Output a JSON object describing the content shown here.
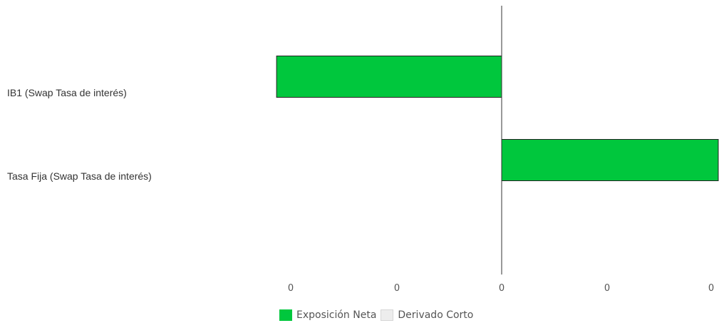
{
  "chart_data": {
    "type": "bar",
    "orientation": "horizontal",
    "categories": [
      "IB1 (Swap Tasa de interés)",
      "Tasa Fija (Swap Tasa de interés)"
    ],
    "series": [
      {
        "name": "Exposición Neta",
        "values": [
          -1.06,
          1.02
        ],
        "color": "#00c73d"
      },
      {
        "name": "Derivado Corto",
        "values": [
          0,
          0
        ],
        "color": "#e6e6e6"
      }
    ],
    "x_tick_labels": [
      "0",
      "0",
      "0",
      "0",
      "0"
    ],
    "xlim": [
      -1,
      1
    ],
    "grid": false,
    "legend_position": "bottom"
  },
  "legend": {
    "items": [
      "Exposición Neta",
      "Derivado Corto"
    ]
  }
}
